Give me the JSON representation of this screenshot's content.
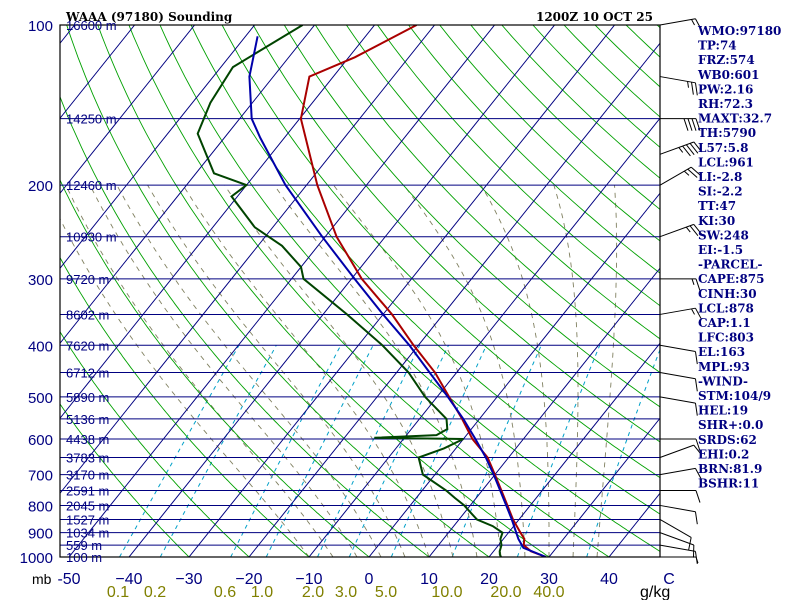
{
  "chart_data": {
    "type": "line",
    "title": "WAAA (97180) Sounding",
    "valid_time": "1200Z 10 OCT 25",
    "ylabel_unit": "mb",
    "pressure_ticks": [
      "100",
      "200",
      "300",
      "400",
      "500",
      "600",
      "700",
      "800",
      "900",
      "1000"
    ],
    "pressure_levels": [
      100,
      200,
      300,
      400,
      500,
      600,
      700,
      800,
      900,
      1000
    ],
    "height_labels": [
      {
        "p": 100,
        "label": "16600 m"
      },
      {
        "p": 150,
        "label": "14250 m"
      },
      {
        "p": 200,
        "label": "12460 m"
      },
      {
        "p": 250,
        "label": "10930 m"
      },
      {
        "p": 300,
        "label": "9720 m"
      },
      {
        "p": 350,
        "label": "8602 m"
      },
      {
        "p": 400,
        "label": "7620 m"
      },
      {
        "p": 450,
        "label": "6712 m"
      },
      {
        "p": 500,
        "label": "5890 m"
      },
      {
        "p": 550,
        "label": "5136 m"
      },
      {
        "p": 600,
        "label": "4438 m"
      },
      {
        "p": 650,
        "label": "3783 m"
      },
      {
        "p": 700,
        "label": "3170 m"
      },
      {
        "p": 750,
        "label": "2591 m"
      },
      {
        "p": 800,
        "label": "2045 m"
      },
      {
        "p": 850,
        "label": "1527 m"
      },
      {
        "p": 900,
        "label": "1034 m"
      },
      {
        "p": 950,
        "label": "559 m"
      },
      {
        "p": 1000,
        "label": "100 m"
      }
    ],
    "temperature_ticks": [
      {
        "t": -50,
        "label": "-50"
      },
      {
        "t": -40,
        "label": "−40"
      },
      {
        "t": -30,
        "label": "−30"
      },
      {
        "t": -20,
        "label": "−20"
      },
      {
        "t": -10,
        "label": "−10"
      },
      {
        "t": 0,
        "label": "0"
      },
      {
        "t": 10,
        "label": "10"
      },
      {
        "t": 20,
        "label": "20"
      },
      {
        "t": 30,
        "label": "30"
      },
      {
        "t": 40,
        "label": "40"
      },
      {
        "t": 50,
        "label": "C"
      }
    ],
    "mixing_ratio_labels": [
      "0.1",
      "0.2",
      "0.6",
      "1.0",
      "2.0",
      "3.0",
      "5.0",
      "10.0",
      "20.0",
      "40.0"
    ],
    "mixing_ratio_unit": "g/kg",
    "series": [
      {
        "name": "Temperature",
        "color": "#aa0000",
        "points": [
          [
            1000,
            29.5
          ],
          [
            975,
            26.2
          ],
          [
            950,
            24.2
          ],
          [
            925,
            23.5
          ],
          [
            900,
            22.0
          ],
          [
            850,
            19.0
          ],
          [
            800,
            16.2
          ],
          [
            750,
            13.2
          ],
          [
            700,
            10.0
          ],
          [
            650,
            6.5
          ],
          [
            600,
            1.5
          ],
          [
            550,
            -2.9
          ],
          [
            500,
            -8.0
          ],
          [
            450,
            -13.6
          ],
          [
            400,
            -20.8
          ],
          [
            350,
            -28.5
          ],
          [
            300,
            -38.3
          ],
          [
            250,
            -48.1
          ],
          [
            200,
            -58.2
          ],
          [
            150,
            -69.8
          ],
          [
            125,
            -74.0
          ],
          [
            115,
            -69.0
          ],
          [
            100,
            -63.0
          ]
        ]
      },
      {
        "name": "Dewpoint",
        "color": "#004400",
        "points": [
          [
            1000,
            22.0
          ],
          [
            990,
            21.5
          ],
          [
            975,
            21.0
          ],
          [
            950,
            20.5
          ],
          [
            925,
            19.5
          ],
          [
            900,
            19.0
          ],
          [
            875,
            16.5
          ],
          [
            850,
            13.0
          ],
          [
            825,
            11.0
          ],
          [
            800,
            9.0
          ],
          [
            775,
            6.5
          ],
          [
            750,
            4.0
          ],
          [
            700,
            -2.0
          ],
          [
            650,
            -5.0
          ],
          [
            625,
            -2.0
          ],
          [
            600,
            0.0
          ],
          [
            597,
            -15.0
          ],
          [
            590,
            -5.0
          ],
          [
            575,
            -4.0
          ],
          [
            550,
            -5.5
          ],
          [
            500,
            -12.0
          ],
          [
            450,
            -18.0
          ],
          [
            400,
            -26.0
          ],
          [
            350,
            -36.0
          ],
          [
            300,
            -48.0
          ],
          [
            285,
            -50.0
          ],
          [
            260,
            -56.0
          ],
          [
            240,
            -63.0
          ],
          [
            210,
            -71.0
          ],
          [
            200,
            -70.0
          ],
          [
            190,
            -77.0
          ],
          [
            160,
            -85.0
          ],
          [
            140,
            -87.0
          ],
          [
            120,
            -88.0
          ],
          [
            100,
            -82.0
          ]
        ]
      },
      {
        "name": "Parcel",
        "color": "#0000aa",
        "points": [
          [
            1000,
            29.5
          ],
          [
            961,
            24.5
          ],
          [
            925,
            22.5
          ],
          [
            850,
            18.8
          ],
          [
            800,
            16.0
          ],
          [
            750,
            13.0
          ],
          [
            700,
            9.8
          ],
          [
            650,
            6.2
          ],
          [
            600,
            2.0
          ],
          [
            550,
            -2.7
          ],
          [
            500,
            -8.2
          ],
          [
            450,
            -14.5
          ],
          [
            400,
            -21.5
          ],
          [
            350,
            -30.0
          ],
          [
            300,
            -39.5
          ],
          [
            250,
            -50.5
          ],
          [
            200,
            -63.5
          ],
          [
            163,
            -74.0
          ],
          [
            150,
            -78.0
          ],
          [
            125,
            -84.0
          ],
          [
            105,
            -88.0
          ]
        ]
      }
    ],
    "indices": [
      {
        "label": "WMO:97180"
      },
      {
        "label": "TP:74"
      },
      {
        "label": "FRZ:574"
      },
      {
        "label": "WB0:601"
      },
      {
        "label": "PW:2.16"
      },
      {
        "label": "RH:72.3"
      },
      {
        "label": "MAXT:32.7"
      },
      {
        "label": "TH:5790"
      },
      {
        "label": "L57:5.8"
      },
      {
        "label": "LCL:961"
      },
      {
        "label": "LI:-2.8"
      },
      {
        "label": "SI:-2.2"
      },
      {
        "label": "TT:47"
      },
      {
        "label": "KI:30"
      },
      {
        "label": "SW:248"
      },
      {
        "label": "EI:-1.5"
      },
      {
        "label": "-PARCEL-"
      },
      {
        "label": "CAPE:875"
      },
      {
        "label": "CINH:30"
      },
      {
        "label": "LCL:878"
      },
      {
        "label": "CAP:1.1"
      },
      {
        "label": "LFC:803"
      },
      {
        "label": "EL:163"
      },
      {
        "label": "MPL:93"
      },
      {
        "label": "-WIND-"
      },
      {
        "label": "STM:104/9"
      },
      {
        "label": "HEL:19"
      },
      {
        "label": "SHR+:0.0"
      },
      {
        "label": "SRDS:62"
      },
      {
        "label": "EHI:0.2"
      },
      {
        "label": "BRN:81.9"
      },
      {
        "label": "BSHR:11"
      }
    ],
    "wind_barbs": [
      {
        "p": 1000,
        "dir": 90,
        "spd": 5
      },
      {
        "p": 950,
        "dir": 100,
        "spd": 10
      },
      {
        "p": 900,
        "dir": 110,
        "spd": 10
      },
      {
        "p": 850,
        "dir": 120,
        "spd": 10
      },
      {
        "p": 800,
        "dir": 100,
        "spd": 10
      },
      {
        "p": 750,
        "dir": 90,
        "spd": 10
      },
      {
        "p": 700,
        "dir": 80,
        "spd": 10
      },
      {
        "p": 650,
        "dir": 70,
        "spd": 10
      },
      {
        "p": 600,
        "dir": 90,
        "spd": 10
      },
      {
        "p": 500,
        "dir": 100,
        "spd": 10
      },
      {
        "p": 450,
        "dir": 100,
        "spd": 10
      },
      {
        "p": 400,
        "dir": 100,
        "spd": 10
      },
      {
        "p": 350,
        "dir": 80,
        "spd": 15
      },
      {
        "p": 300,
        "dir": 90,
        "spd": 15
      },
      {
        "p": 250,
        "dir": 70,
        "spd": 25
      },
      {
        "p": 200,
        "dir": 60,
        "spd": 25
      },
      {
        "p": 175,
        "dir": 70,
        "spd": 45
      },
      {
        "p": 150,
        "dir": 90,
        "spd": 40
      },
      {
        "p": 125,
        "dir": 100,
        "spd": 25
      },
      {
        "p": 100,
        "dir": 80,
        "spd": 15
      }
    ],
    "colors": {
      "frame": "#000000",
      "isobar": "#000080",
      "isotherm": "#000080",
      "dry_adiabat": "#00a000",
      "moist_adiabat": "#808060",
      "mixing_ratio": "#00a0c8",
      "title": "#000080",
      "index_text": "#000080",
      "pressure_label": "#000080",
      "mixing_label": "#808000",
      "temperature_label": "#000080"
    }
  }
}
